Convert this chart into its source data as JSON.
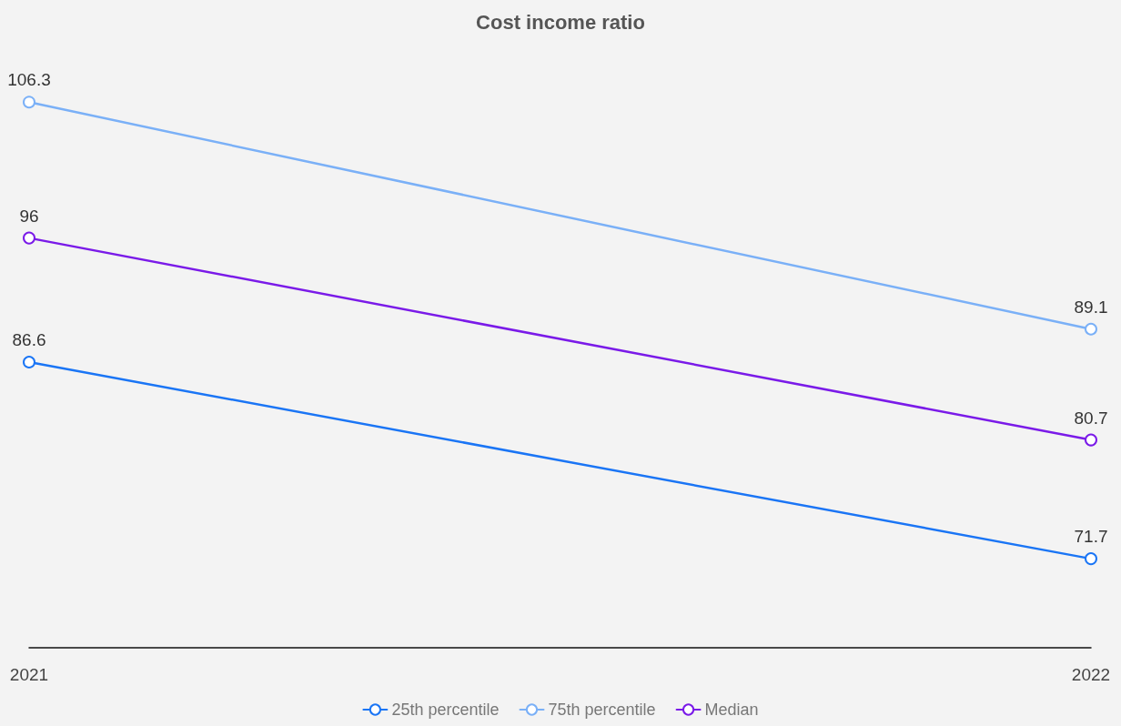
{
  "chart_data": {
    "type": "line",
    "title": "Cost income ratio",
    "categories": [
      "2021",
      "2022"
    ],
    "series": [
      {
        "name": "25th percentile",
        "color": "#1a75f5",
        "values": [
          86.6,
          71.7
        ]
      },
      {
        "name": "75th percentile",
        "color": "#7ab0f7",
        "values": [
          106.3,
          89.1
        ]
      },
      {
        "name": "Median",
        "color": "#7a1ae8",
        "values": [
          96,
          80.7
        ]
      }
    ],
    "data_labels": true,
    "marker": "circle",
    "line_style": "solid",
    "legend": "bottom",
    "grid": false,
    "tick_labels": "x"
  }
}
